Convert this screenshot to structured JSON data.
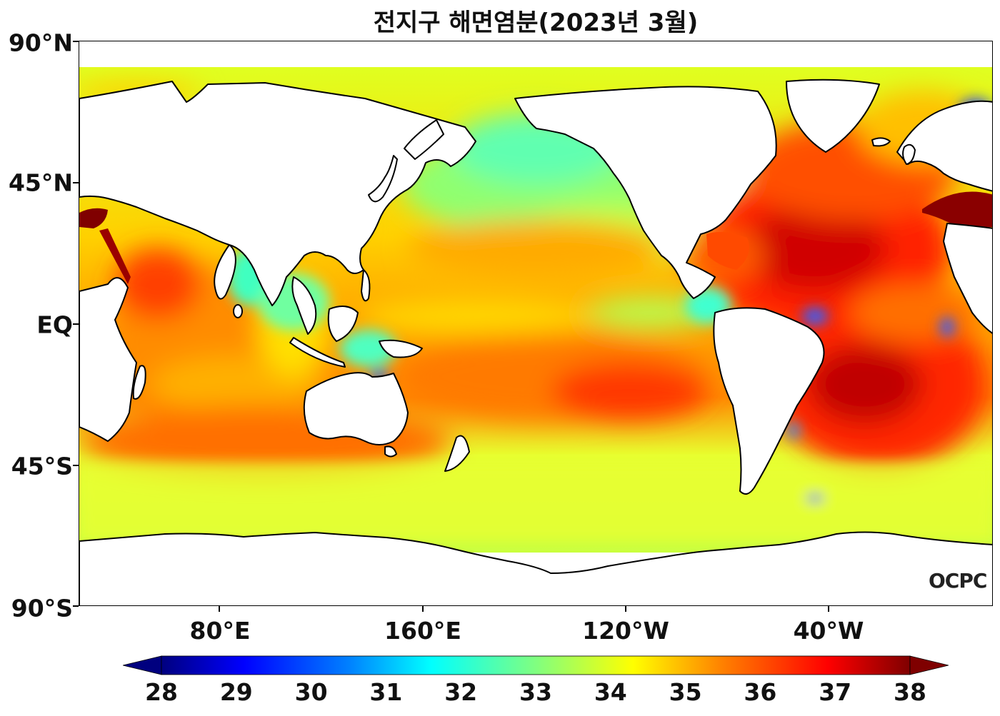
{
  "title": "전지구 해면염분(2023년 3월)",
  "map": {
    "lat_labels": [
      "90°N",
      "45°N",
      "EQ",
      "45°S",
      "90°S"
    ],
    "lon_labels": [
      "80°E",
      "160°E",
      "120°W",
      "40°W"
    ],
    "logo_text": "OCPC",
    "land_color": "#ffffff",
    "coast_color": "#000000"
  },
  "colorbar": {
    "min": 28,
    "max": 38,
    "ticks": [
      "28",
      "29",
      "30",
      "31",
      "32",
      "33",
      "34",
      "35",
      "36",
      "37",
      "38"
    ],
    "extend": "both",
    "colormap": "jet",
    "colors": [
      "#00007f",
      "#0000ff",
      "#0080ff",
      "#00ffff",
      "#80ff80",
      "#ffff00",
      "#ff8000",
      "#ff0000",
      "#7f0000"
    ]
  }
}
